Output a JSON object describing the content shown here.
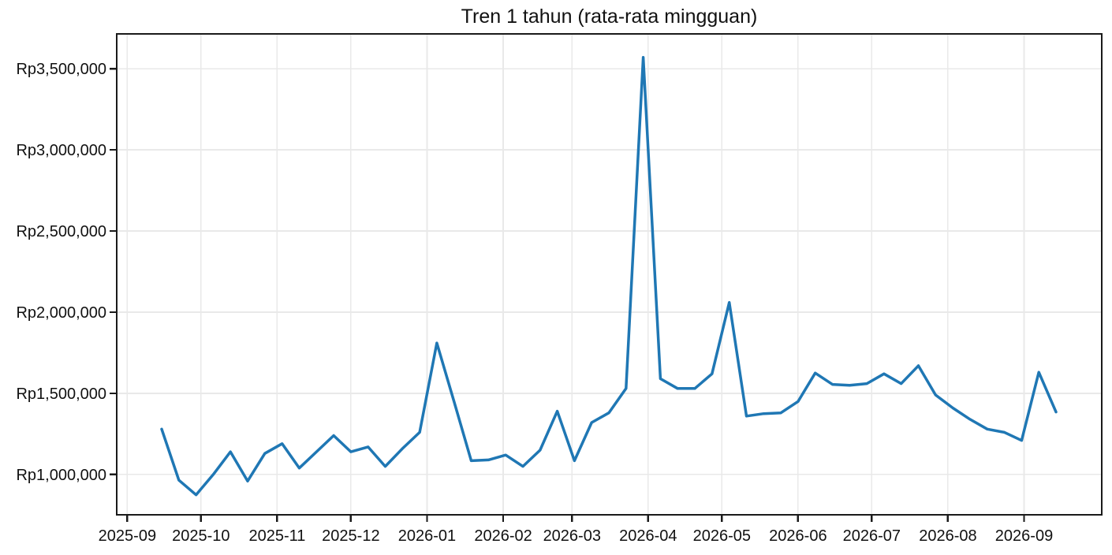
{
  "chart_data": {
    "type": "line",
    "title": "Tren 1 tahun (rata-rata mingguan)",
    "currency_prefix": "Rp",
    "line_color": "#1f77b4",
    "grid": true,
    "grid_color": "#e9e9e9",
    "spine_color": "#1a1a1a",
    "legend": "none",
    "ylim": [
      752000,
      3714000
    ],
    "y_ticks": [
      {
        "value": 1000000,
        "label": "Rp1,000,000"
      },
      {
        "value": 1500000,
        "label": "Rp1,500,000"
      },
      {
        "value": 2000000,
        "label": "Rp2,000,000"
      },
      {
        "value": 2500000,
        "label": "Rp2,500,000"
      },
      {
        "value": 3000000,
        "label": "Rp3,000,000"
      },
      {
        "value": 3500000,
        "label": "Rp3,500,000"
      }
    ],
    "x_ticks": [
      "2025-09",
      "2025-10",
      "2025-11",
      "2025-12",
      "2026-01",
      "2026-02",
      "2026-03",
      "2026-04",
      "2026-05",
      "2026-06",
      "2026-07",
      "2026-08",
      "2026-09"
    ],
    "dates": [
      "2025-09-15",
      "2025-09-22",
      "2025-09-29",
      "2025-10-06",
      "2025-10-13",
      "2025-10-20",
      "2025-10-27",
      "2025-11-03",
      "2025-11-10",
      "2025-11-17",
      "2025-11-24",
      "2025-12-01",
      "2025-12-08",
      "2025-12-15",
      "2025-12-22",
      "2025-12-29",
      "2026-01-05",
      "2026-01-12",
      "2026-01-19",
      "2026-01-26",
      "2026-02-02",
      "2026-02-09",
      "2026-02-16",
      "2026-02-23",
      "2026-03-02",
      "2026-03-09",
      "2026-03-16",
      "2026-03-23",
      "2026-03-30",
      "2026-04-06",
      "2026-04-13",
      "2026-04-20",
      "2026-04-27",
      "2026-05-04",
      "2026-05-11",
      "2026-05-18",
      "2026-05-25",
      "2026-06-01",
      "2026-06-08",
      "2026-06-15",
      "2026-06-22",
      "2026-06-29",
      "2026-07-06",
      "2026-07-13",
      "2026-07-20",
      "2026-07-27",
      "2026-08-03",
      "2026-08-10",
      "2026-08-17",
      "2026-08-24",
      "2026-08-31",
      "2026-09-07",
      "2026-09-14"
    ],
    "values": [
      1280000,
      965000,
      875000,
      1000000,
      1140000,
      960000,
      1130000,
      1190000,
      1040000,
      1140000,
      1240000,
      1140000,
      1170000,
      1050000,
      1160000,
      1260000,
      1810000,
      1450000,
      1085000,
      1090000,
      1120000,
      1050000,
      1150000,
      1390000,
      1085000,
      1320000,
      1380000,
      1530000,
      3570000,
      1590000,
      1530000,
      1530000,
      1620000,
      2060000,
      1360000,
      1375000,
      1380000,
      1450000,
      1625000,
      1555000,
      1550000,
      1560000,
      1620000,
      1560000,
      1670000,
      1490000,
      1410000,
      1340000,
      1280000,
      1260000,
      1210000,
      1630000,
      1385000
    ]
  }
}
